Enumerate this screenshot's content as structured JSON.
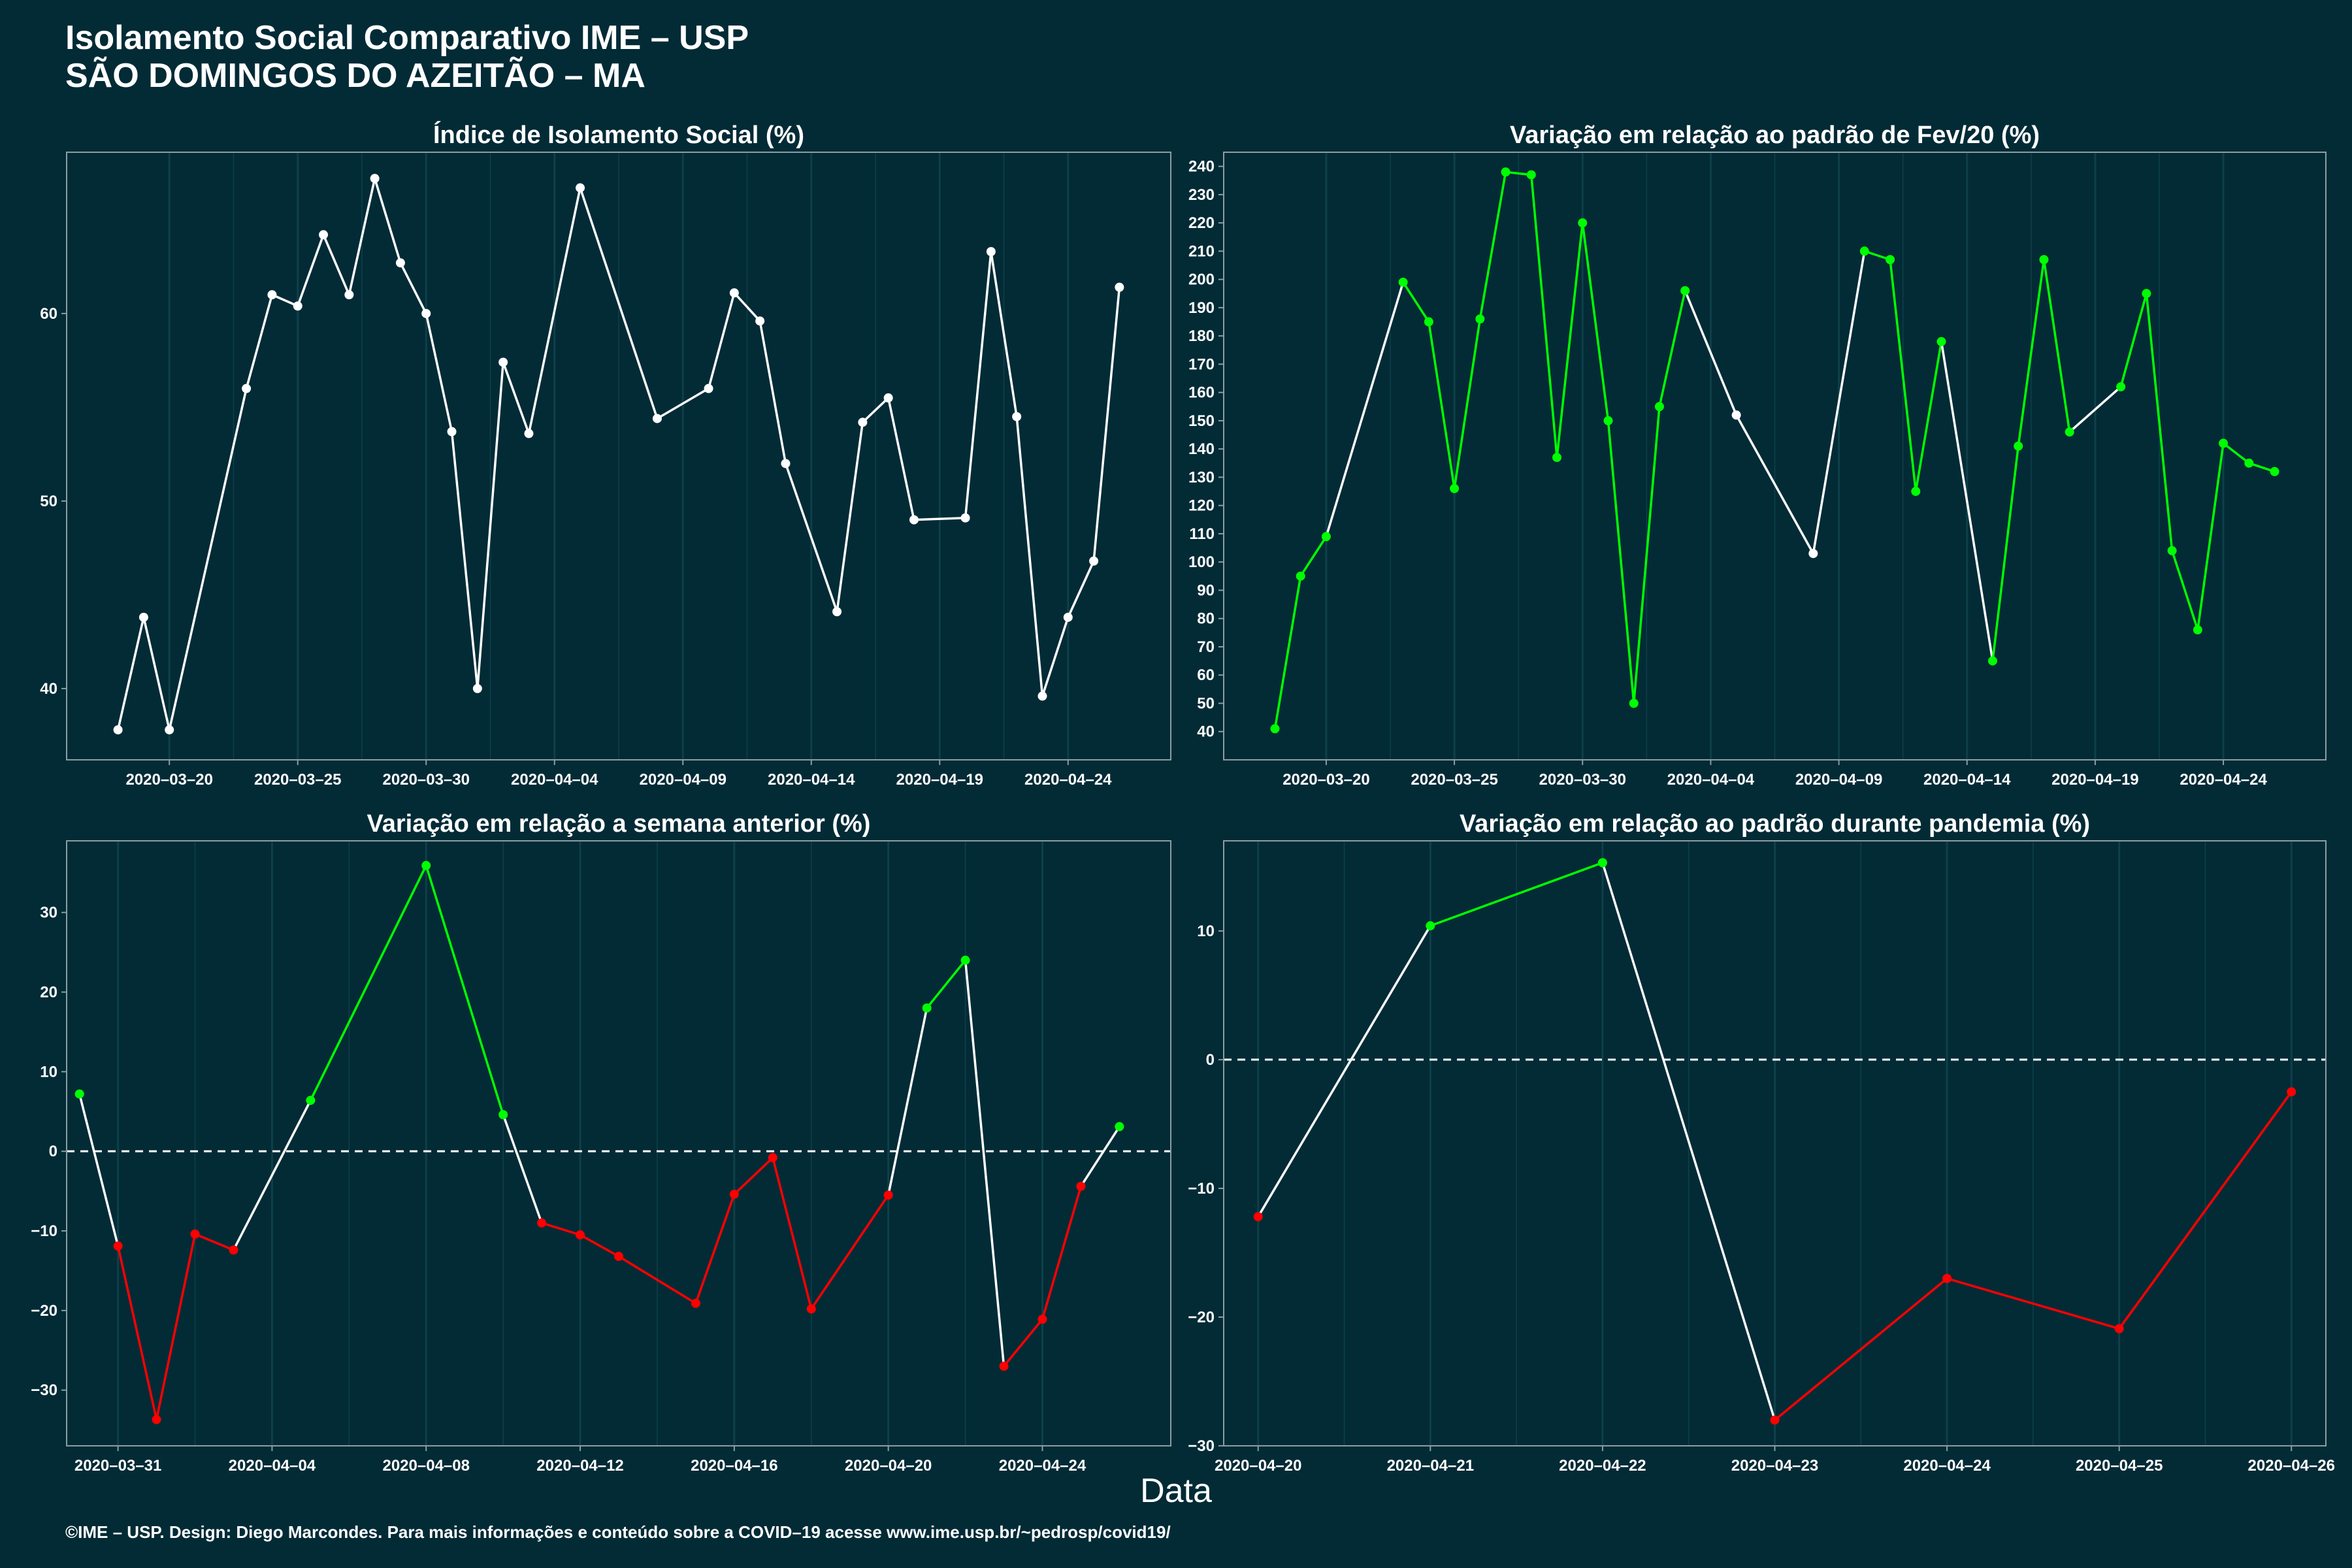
{
  "header": {
    "title_line1": "Isolamento Social Comparativo IME – USP",
    "title_line2": "SÃO DOMINGOS DO AZEITÃO – MA"
  },
  "xlabel": "Data",
  "footer": "©IME – USP. Design: Diego Marcondes. Para mais informações e conteúdo sobre a COVID–19 acesse www.ime.usp.br/~pedrosp/covid19/",
  "colors": {
    "background": "#022b36",
    "line_neutral": "#ffffff",
    "line_up": "#00ff00",
    "line_down": "#ff0000",
    "grid": "#0e4049",
    "axis": "#8a9ea3"
  },
  "chart_data": [
    {
      "id": "isolamento",
      "type": "line",
      "title": "Índice de Isolamento Social (%)",
      "xlabel": "Data",
      "ylabel": "",
      "coloring": "white",
      "xlim": [
        "2020-03-16",
        "2020-04-28"
      ],
      "ylim": [
        36.2,
        68.6
      ],
      "xticks": [
        "2020-03-20",
        "2020-03-25",
        "2020-03-30",
        "2020-04-04",
        "2020-04-09",
        "2020-04-14",
        "2020-04-19",
        "2020-04-24"
      ],
      "yticks": [
        40,
        50,
        60
      ],
      "grid": true,
      "points": [
        [
          "2020-03-18",
          37.8
        ],
        [
          "2020-03-19",
          43.8
        ],
        [
          "2020-03-20",
          37.8
        ],
        [
          "2020-03-23",
          56.0
        ],
        [
          "2020-03-24",
          61.0
        ],
        [
          "2020-03-25",
          60.4
        ],
        [
          "2020-03-26",
          64.2
        ],
        [
          "2020-03-27",
          61.0
        ],
        [
          "2020-03-28",
          67.2
        ],
        [
          "2020-03-29",
          62.7
        ],
        [
          "2020-03-30",
          60.0
        ],
        [
          "2020-03-31",
          53.7
        ],
        [
          "2020-04-01",
          40.0
        ],
        [
          "2020-04-02",
          57.4
        ],
        [
          "2020-04-03",
          53.6
        ],
        [
          "2020-04-05",
          66.7
        ],
        [
          "2020-04-08",
          54.4
        ],
        [
          "2020-04-10",
          56.0
        ],
        [
          "2020-04-11",
          61.1
        ],
        [
          "2020-04-12",
          59.6
        ],
        [
          "2020-04-13",
          52.0
        ],
        [
          "2020-04-15",
          44.1
        ],
        [
          "2020-04-16",
          54.2
        ],
        [
          "2020-04-17",
          55.5
        ],
        [
          "2020-04-18",
          49.0
        ],
        [
          "2020-04-20",
          49.1
        ],
        [
          "2020-04-21",
          63.3
        ],
        [
          "2020-04-22",
          54.5
        ],
        [
          "2020-04-23",
          39.6
        ],
        [
          "2020-04-24",
          43.8
        ],
        [
          "2020-04-25",
          46.8
        ],
        [
          "2020-04-26",
          61.4
        ]
      ]
    },
    {
      "id": "fev20",
      "type": "line",
      "title": "Variação em relação ao padrão de Fev/20 (%)",
      "xlabel": "Data",
      "ylabel": "",
      "coloring": "consecutive-day",
      "xlim": [
        "2020-03-16",
        "2020-04-28"
      ],
      "ylim": [
        30,
        245
      ],
      "xticks": [
        "2020-03-20",
        "2020-03-25",
        "2020-03-30",
        "2020-04-04",
        "2020-04-09",
        "2020-04-14",
        "2020-04-19",
        "2020-04-24"
      ],
      "yticks": [
        40,
        50,
        60,
        70,
        80,
        90,
        100,
        110,
        120,
        130,
        140,
        150,
        160,
        170,
        180,
        190,
        200,
        210,
        220,
        230,
        240
      ],
      "grid": true,
      "points": [
        [
          "2020-03-18",
          41
        ],
        [
          "2020-03-19",
          95
        ],
        [
          "2020-03-20",
          109
        ],
        [
          "2020-03-23",
          199
        ],
        [
          "2020-03-24",
          185
        ],
        [
          "2020-03-25",
          126
        ],
        [
          "2020-03-26",
          186
        ],
        [
          "2020-03-27",
          238
        ],
        [
          "2020-03-28",
          237
        ],
        [
          "2020-03-29",
          137
        ],
        [
          "2020-03-30",
          220
        ],
        [
          "2020-03-31",
          150
        ],
        [
          "2020-04-01",
          50
        ],
        [
          "2020-04-02",
          155
        ],
        [
          "2020-04-03",
          196
        ],
        [
          "2020-04-05",
          152
        ],
        [
          "2020-04-08",
          103
        ],
        [
          "2020-04-10",
          210
        ],
        [
          "2020-04-11",
          207
        ],
        [
          "2020-04-12",
          125
        ],
        [
          "2020-04-13",
          178
        ],
        [
          "2020-04-15",
          65
        ],
        [
          "2020-04-16",
          141
        ],
        [
          "2020-04-17",
          207
        ],
        [
          "2020-04-18",
          146
        ],
        [
          "2020-04-20",
          162
        ],
        [
          "2020-04-21",
          195
        ],
        [
          "2020-04-22",
          104
        ],
        [
          "2020-04-23",
          76
        ],
        [
          "2020-04-24",
          142
        ],
        [
          "2020-04-25",
          135
        ],
        [
          "2020-04-26",
          132
        ]
      ]
    },
    {
      "id": "semana",
      "type": "line",
      "title": "Variação em relação a semana anterior (%)",
      "xlabel": "Data",
      "ylabel": "",
      "coloring": "sign",
      "zero_line": true,
      "xlim": [
        "2020-03-29T16:00",
        "2020-04-27T08:00"
      ],
      "ylim": [
        -37,
        39
      ],
      "xticks": [
        "2020-03-31",
        "2020-04-04",
        "2020-04-08",
        "2020-04-12",
        "2020-04-16",
        "2020-04-20",
        "2020-04-24"
      ],
      "yticks": [
        -30,
        -20,
        -10,
        0,
        10,
        20,
        30
      ],
      "grid": true,
      "points": [
        [
          "2020-03-30",
          7.2
        ],
        [
          "2020-03-31",
          -11.9
        ],
        [
          "2020-04-01",
          -33.7
        ],
        [
          "2020-04-02",
          -10.4
        ],
        [
          "2020-04-03",
          -12.4
        ],
        [
          "2020-04-05",
          6.4
        ],
        [
          "2020-04-08",
          35.9
        ],
        [
          "2020-04-10",
          4.6
        ],
        [
          "2020-04-11",
          -9.0
        ],
        [
          "2020-04-12",
          -10.5
        ],
        [
          "2020-04-13",
          -13.2
        ],
        [
          "2020-04-15",
          -19.1
        ],
        [
          "2020-04-16",
          -5.4
        ],
        [
          "2020-04-17",
          -0.8
        ],
        [
          "2020-04-18",
          -19.8
        ],
        [
          "2020-04-20",
          -5.5
        ],
        [
          "2020-04-21",
          18.0
        ],
        [
          "2020-04-22",
          24.0
        ],
        [
          "2020-04-23",
          -27.0
        ],
        [
          "2020-04-24",
          -21.1
        ],
        [
          "2020-04-25",
          -4.4
        ],
        [
          "2020-04-26",
          3.1
        ]
      ]
    },
    {
      "id": "pandemia",
      "type": "line",
      "title": "Variação em relação ao padrão durante pandemia (%)",
      "xlabel": "Data",
      "ylabel": "",
      "coloring": "sign",
      "zero_line": true,
      "xlim": [
        "2020-04-19T19:12",
        "2020-04-26T04:48"
      ],
      "ylim": [
        -30,
        17
      ],
      "xticks": [
        "2020-04-20",
        "2020-04-21",
        "2020-04-22",
        "2020-04-23",
        "2020-04-24",
        "2020-04-25",
        "2020-04-26"
      ],
      "yticks": [
        -30,
        -20,
        -10,
        0,
        10
      ],
      "grid": true,
      "points": [
        [
          "2020-04-20",
          -12.2
        ],
        [
          "2020-04-21",
          10.4
        ],
        [
          "2020-04-22",
          15.3
        ],
        [
          "2020-04-23",
          -28.0
        ],
        [
          "2020-04-24",
          -17.0
        ],
        [
          "2020-04-25",
          -20.9
        ],
        [
          "2020-04-26",
          -2.5
        ]
      ]
    }
  ]
}
